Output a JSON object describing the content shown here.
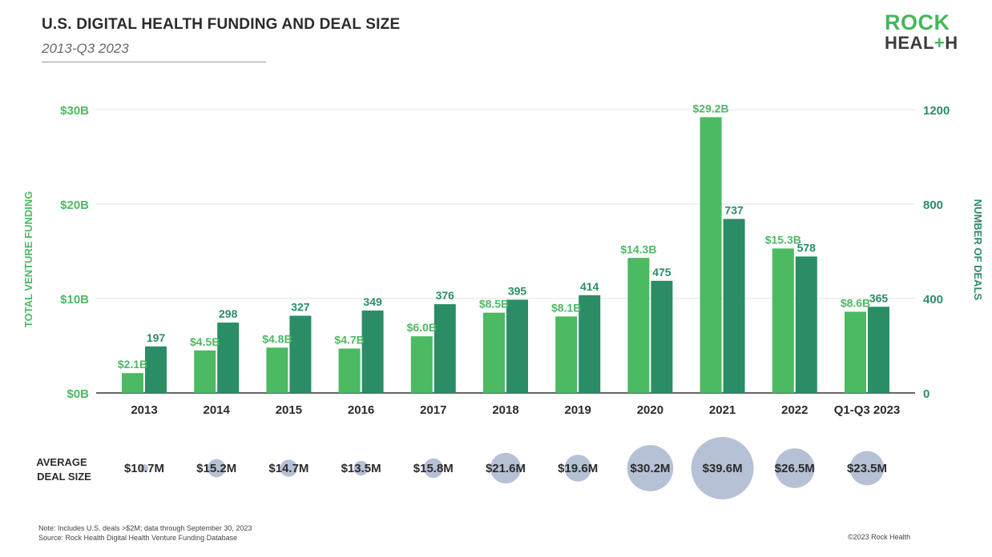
{
  "header": {
    "title": "U.S. DIGITAL HEALTH FUNDING AND DEAL SIZE",
    "subtitle": "2013-Q3 2023",
    "logo_line1": "ROCK",
    "logo_line2_a": "HEAL",
    "logo_line2_plus": "+",
    "logo_line2_b": "H"
  },
  "footer": {
    "note": "Note: Includes U.S. deals >$2M; data through September 30, 2023",
    "source": "Source: Rock Health Digital Health Venture Funding Database",
    "copyright": "©2023 Rock Health"
  },
  "chart_data": {
    "type": "bar",
    "categories": [
      "2013",
      "2014",
      "2015",
      "2016",
      "2017",
      "2018",
      "2019",
      "2020",
      "2021",
      "2022",
      "Q1-Q3 2023"
    ],
    "series": [
      {
        "values": [
          2.1,
          4.5,
          4.8,
          4.7,
          6.0,
          8.5,
          8.1,
          14.3,
          29.2,
          15.3,
          8.6
        ],
        "labels": [
          "$2.1B",
          "$4.5B",
          "$4.8B",
          "$4.7B",
          "$6.0B",
          "$8.5B",
          "$8.1B",
          "$14.3B",
          "$29.2B",
          "$15.3B",
          "$8.6B"
        ],
        "axis": "left",
        "color": "#4cb963"
      },
      {
        "values": [
          197,
          298,
          327,
          349,
          376,
          395,
          414,
          475,
          737,
          578,
          365
        ],
        "labels": [
          "197",
          "298",
          "327",
          "349",
          "376",
          "395",
          "414",
          "475",
          "737",
          "578",
          "365"
        ],
        "axis": "right",
        "color": "#2a8d66"
      }
    ],
    "ylabel_left": "TOTAL VENTURE FUNDING",
    "ylabel_right": "NUMBER OF DEALS",
    "ylim_left": [
      0,
      30
    ],
    "ylim_right": [
      0,
      1200
    ],
    "yticks_left": [
      "$0B",
      "$10B",
      "$20B",
      "$30B"
    ],
    "yticks_right": [
      "0",
      "400",
      "800",
      "1200"
    ],
    "grid": true,
    "average_deal_size": {
      "label_line1": "AVERAGE",
      "label_line2": "DEAL SIZE",
      "values": [
        10.7,
        15.2,
        14.7,
        13.5,
        15.8,
        21.6,
        19.6,
        30.2,
        39.6,
        26.5,
        23.5
      ],
      "labels": [
        "$10.7M",
        "$15.2M",
        "$14.7M",
        "$13.5M",
        "$15.8M",
        "$21.6M",
        "$19.6M",
        "$30.2M",
        "$39.6M",
        "$26.5M",
        "$23.5M"
      ],
      "bubble_color": "#b6c1d6"
    },
    "colors": {
      "left_axis_text": "#4cb963",
      "right_axis_text": "#2a8d66",
      "gridline": "#e3e3e3"
    }
  }
}
